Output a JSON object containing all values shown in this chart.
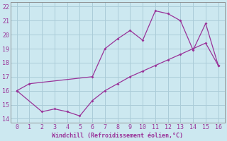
{
  "line1_x": [
    0,
    1,
    6,
    7,
    8,
    9,
    10,
    11,
    12,
    13,
    14,
    15,
    16
  ],
  "line1_y": [
    16.0,
    16.5,
    17.0,
    19.0,
    19.7,
    20.3,
    19.6,
    21.7,
    21.5,
    21.0,
    18.9,
    20.8,
    17.8
  ],
  "line2_x": [
    0,
    2,
    3,
    4,
    5,
    6,
    7,
    8,
    9,
    10,
    11,
    12,
    13,
    14,
    15,
    16
  ],
  "line2_y": [
    16.0,
    14.5,
    14.7,
    14.5,
    14.2,
    15.3,
    16.0,
    16.5,
    17.0,
    17.4,
    17.8,
    18.2,
    18.6,
    19.0,
    19.4,
    17.8
  ],
  "color": "#993399",
  "bg_color": "#cce8f0",
  "grid_color": "#aaccd8",
  "xlabel": "Windchill (Refroidissement éolien,°C)",
  "xlim": [
    -0.5,
    16.5
  ],
  "ylim": [
    13.7,
    22.3
  ],
  "xticks": [
    0,
    1,
    2,
    3,
    4,
    5,
    6,
    7,
    8,
    9,
    10,
    11,
    12,
    13,
    14,
    15,
    16
  ],
  "yticks": [
    14,
    15,
    16,
    17,
    18,
    19,
    20,
    21,
    22
  ]
}
